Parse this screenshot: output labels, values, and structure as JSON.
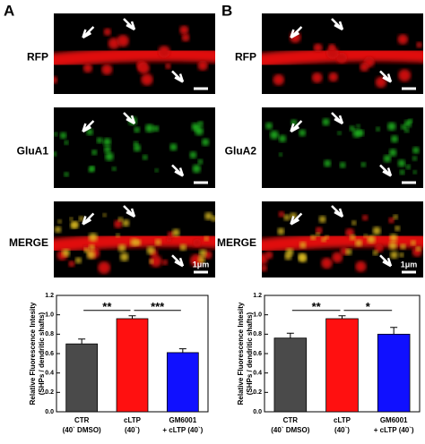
{
  "panels": [
    {
      "letter": "A",
      "rows": [
        "RFP",
        "GluA1",
        "MERGE"
      ],
      "scale_bar": "1μm"
    },
    {
      "letter": "B",
      "rows": [
        "RFP",
        "GluA2",
        "MERGE"
      ],
      "scale_bar": "1μm"
    }
  ],
  "chart_data": [
    {
      "type": "bar",
      "ylabel": [
        "Relative Fluorescence Intesity",
        "(SHPs / dendritic shafts)"
      ],
      "categories": [
        [
          "CTR",
          "(40` DMSO)"
        ],
        [
          "cLTP",
          "(40`)"
        ],
        [
          "GM6001",
          "+ cLTP (40`)"
        ]
      ],
      "values": [
        0.7,
        0.96,
        0.61
      ],
      "errors": [
        0.05,
        0.03,
        0.04
      ],
      "colors": [
        "#4a4a4a",
        "#ff1010",
        "#1010ff"
      ],
      "ylim": [
        0,
        1.2
      ],
      "yticks": [
        {
          "value": 0,
          "label": "0.0"
        },
        {
          "value": 0.2,
          "label": "0.2"
        },
        {
          "value": 0.4,
          "label": "0.4"
        },
        {
          "value": 0.6,
          "label": "0.6"
        },
        {
          "value": 0.8,
          "label": "0.8"
        },
        {
          "value": 1.0,
          "label": "1.0"
        },
        {
          "value": 1.2,
          "label": "1.2"
        }
      ],
      "significance": [
        {
          "from": 0,
          "to": 1,
          "label": "**"
        },
        {
          "from": 1,
          "to": 2,
          "label": "***"
        }
      ]
    },
    {
      "type": "bar",
      "ylabel": [
        "Relative Fluorescence Intesity",
        "(SHPs / dendritic shafts)"
      ],
      "categories": [
        [
          "CTR",
          "(40` DMSO)"
        ],
        [
          "cLTP",
          "(40`)"
        ],
        [
          "GM6001",
          "+ cLTP (40`)"
        ]
      ],
      "values": [
        0.76,
        0.96,
        0.8
      ],
      "errors": [
        0.05,
        0.03,
        0.07
      ],
      "colors": [
        "#4a4a4a",
        "#ff1010",
        "#1010ff"
      ],
      "ylim": [
        0,
        1.2
      ],
      "yticks": [
        {
          "value": 0,
          "label": "0.0"
        },
        {
          "value": 0.2,
          "label": "0.2"
        },
        {
          "value": 0.4,
          "label": "0.4"
        },
        {
          "value": 0.6,
          "label": "0.6"
        },
        {
          "value": 0.8,
          "label": "0.8"
        },
        {
          "value": 1.0,
          "label": "1.0"
        },
        {
          "value": 1.2,
          "label": "1.2"
        }
      ],
      "significance": [
        {
          "from": 0,
          "to": 1,
          "label": "**"
        },
        {
          "from": 1,
          "to": 2,
          "label": "*"
        }
      ]
    }
  ]
}
